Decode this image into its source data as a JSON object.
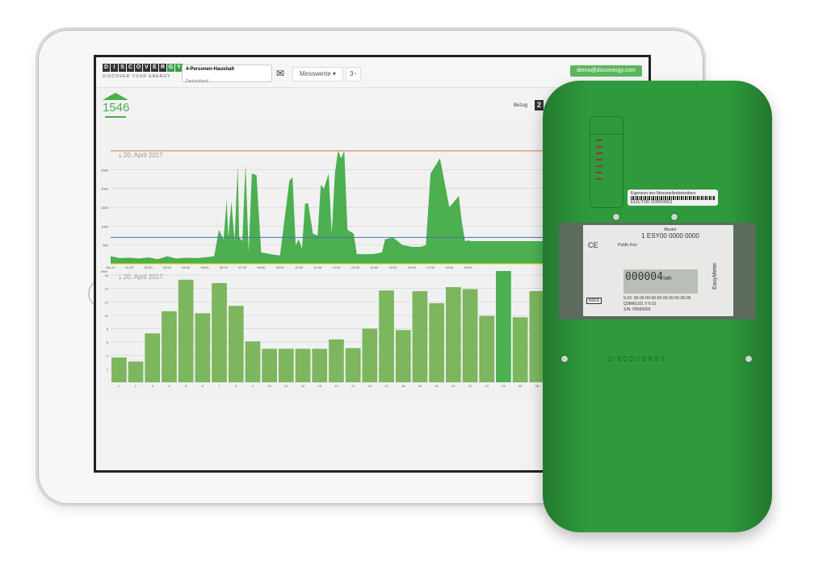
{
  "header": {
    "logo": "DISCOVERGY",
    "tagline": "DISCOVER YOUR ENERGY",
    "location_title": "4-Personen-Haushalt",
    "location_sub": "Deutschland",
    "menu_label": "Messwerte ▾",
    "phase_label": "3~",
    "user_email": "demo@discovergy.com",
    "email_color": "#5cb85c"
  },
  "summary": {
    "value": "1546",
    "bezug_label": "Bezug",
    "digit": "2",
    "accent": "#4caf50"
  },
  "chart_data": [
    {
      "type": "area",
      "title": "20. April 2017",
      "ylim": [
        0,
        3000
      ],
      "yticks": [
        500,
        1000,
        1500,
        2000,
        2500
      ],
      "xticks": [
        "Mo 24",
        "01:00",
        "02:00",
        "03:00",
        "04:00",
        "05:00",
        "06:00",
        "07:00",
        "08:00",
        "09:00",
        "10:00",
        "11:00",
        "12:00",
        "13:00",
        "14:00",
        "15:00",
        "16:00",
        "17:00",
        "18:00",
        "19:00"
      ],
      "reference_lines": [
        {
          "value": 3000,
          "color": "#e07050"
        },
        {
          "value": 700,
          "color": "#4a6fb5"
        },
        {
          "value": 0,
          "color": "#e6d000"
        }
      ],
      "color": "#4caf50",
      "x": [
        "00:00",
        "00:30",
        "01:00",
        "01:30",
        "02:00",
        "02:30",
        "03:00",
        "03:30",
        "04:00",
        "04:30",
        "05:00",
        "05:30",
        "05:45",
        "06:00",
        "06:10",
        "06:15",
        "06:25",
        "06:35",
        "06:45",
        "06:50",
        "07:00",
        "07:10",
        "07:20",
        "07:30",
        "07:45",
        "08:00",
        "08:15",
        "08:30",
        "09:00",
        "09:30",
        "09:40",
        "09:50",
        "10:00",
        "10:10",
        "10:20",
        "10:30",
        "10:45",
        "11:00",
        "11:10",
        "11:20",
        "11:35",
        "11:45",
        "11:55",
        "12:05",
        "12:15",
        "12:25",
        "12:35",
        "12:45",
        "12:55",
        "13:05",
        "13:15",
        "13:30",
        "14:00",
        "14:25",
        "14:35",
        "15:00",
        "15:30",
        "16:00",
        "16:30",
        "16:45",
        "17:00",
        "17:30",
        "18:00",
        "18:30",
        "18:40",
        "18:50",
        "19:00",
        "19:10",
        "19:20",
        "19:30",
        "19:45"
      ],
      "y": [
        200,
        150,
        160,
        140,
        170,
        120,
        200,
        140,
        160,
        150,
        170,
        200,
        900,
        650,
        1700,
        700,
        1650,
        600,
        2600,
        700,
        600,
        2650,
        300,
        2400,
        2350,
        300,
        280,
        250,
        220,
        2200,
        2300,
        500,
        650,
        400,
        1600,
        1600,
        800,
        750,
        2100,
        2000,
        2400,
        800,
        2400,
        3000,
        2800,
        3000,
        900,
        850,
        800,
        250,
        260,
        250,
        260,
        300,
        650,
        700,
        500,
        450,
        450,
        500,
        2400,
        2800,
        1500,
        1800,
        1100,
        600,
        620,
        600,
        600,
        600,
        600
      ]
    },
    {
      "type": "bar",
      "title": "20. April 2017",
      "ylabel": "kWh",
      "ylim": [
        0,
        16
      ],
      "yticks": [
        2,
        4,
        6,
        8,
        10,
        12,
        14,
        16
      ],
      "color": "#7cb65e",
      "highlight_color": "#4caf50",
      "highlight": "24",
      "weekend_color": "#e53935",
      "categories": [
        "1",
        "2",
        "3",
        "4",
        "5",
        "6",
        "7",
        "8",
        "9",
        "10",
        "11",
        "12",
        "13",
        "14",
        "15",
        "16",
        "17",
        "18",
        "19",
        "20",
        "21",
        "22",
        "23",
        "24",
        "25",
        "26"
      ],
      "weekend": [
        "1",
        "2",
        "8",
        "9",
        "15",
        "16",
        "22",
        "23"
      ],
      "values": [
        3.7,
        3.1,
        7.3,
        10.6,
        15.3,
        10.3,
        14.8,
        11.4,
        6.1,
        5.0,
        5.0,
        5.0,
        5.0,
        6.4,
        5.1,
        8.0,
        13.7,
        7.8,
        13.6,
        11.8,
        14.2,
        13.9,
        9.9,
        16.6,
        9.7,
        13.6
      ]
    }
  ],
  "meter": {
    "label_top": "Eigentum des Messstellenbetreibers",
    "label_id": "EDCY00 00000001",
    "model": "Muster",
    "meter_id": "1 ESY00 0000 0000",
    "public_key": "Public Key",
    "reading": "000004",
    "unit": "kWh",
    "sid": "S-ID: 00-00-00-00-00-00-00-00-00-00",
    "version": "Q3MA1101  V 6.01",
    "serial": "S/N: 00000000",
    "mxx": "MXX",
    "brand": "EasyMeter",
    "embossed": "DISCOVERGY"
  }
}
